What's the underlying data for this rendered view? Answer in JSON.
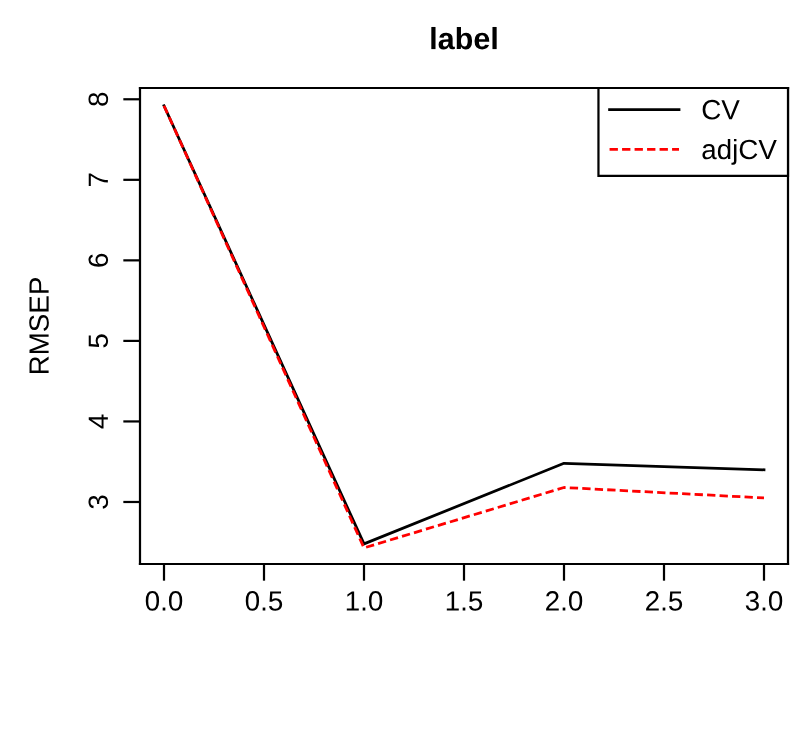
{
  "chart_data": {
    "type": "line",
    "title": "label",
    "ylabel": "RMSEP",
    "x": [
      0,
      1,
      2,
      3
    ],
    "series": [
      {
        "name": "CV",
        "color": "#000000",
        "values": [
          7.92,
          2.48,
          3.48,
          3.4
        ],
        "line_style": "solid"
      },
      {
        "name": "adjCV",
        "color": "#ff0000",
        "values": [
          7.92,
          2.43,
          3.18,
          3.05
        ],
        "line_style": "dashed"
      }
    ],
    "xlim": [
      -0.12,
      3.12
    ],
    "ylim": [
      2.23,
      8.14
    ],
    "xticks": [
      {
        "value": 0,
        "label": "0.0"
      },
      {
        "value": 0.5,
        "label": "0.5"
      },
      {
        "value": 1,
        "label": "1.0"
      },
      {
        "value": 1.5,
        "label": "1.5"
      },
      {
        "value": 2,
        "label": "2.0"
      },
      {
        "value": 2.5,
        "label": "2.5"
      },
      {
        "value": 3,
        "label": "3.0"
      }
    ],
    "yticks": [
      3,
      4,
      5,
      6,
      7,
      8
    ],
    "grid": false,
    "legend": "top right"
  }
}
